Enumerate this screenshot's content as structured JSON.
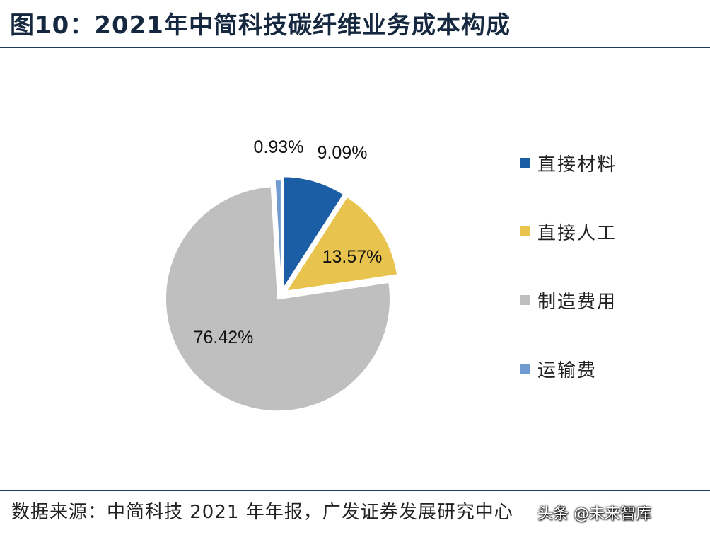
{
  "title": "图10：2021年中简科技碳纤维业务成本构成",
  "source": "数据来源：中简科技 2021 年年报，广发证券发展研究中心",
  "watermark": "头条 @未来智库",
  "chart_data": {
    "type": "pie",
    "title": "2021年中简科技碳纤维业务成本构成",
    "start_angle_deg": 0,
    "direction": "clockwise",
    "exploded": true,
    "legend_position": "right",
    "slices": [
      {
        "name": "直接材料",
        "value": 9.09,
        "label": "9.09%",
        "color": "#1b5ea6"
      },
      {
        "name": "直接人工",
        "value": 13.57,
        "label": "13.57%",
        "color": "#e8c44e"
      },
      {
        "name": "制造费用",
        "value": 76.42,
        "label": "76.42%",
        "color": "#bfbfbf"
      },
      {
        "name": "运输费",
        "value": 0.93,
        "label": "0.93%",
        "color": "#6f9bd1"
      }
    ]
  }
}
